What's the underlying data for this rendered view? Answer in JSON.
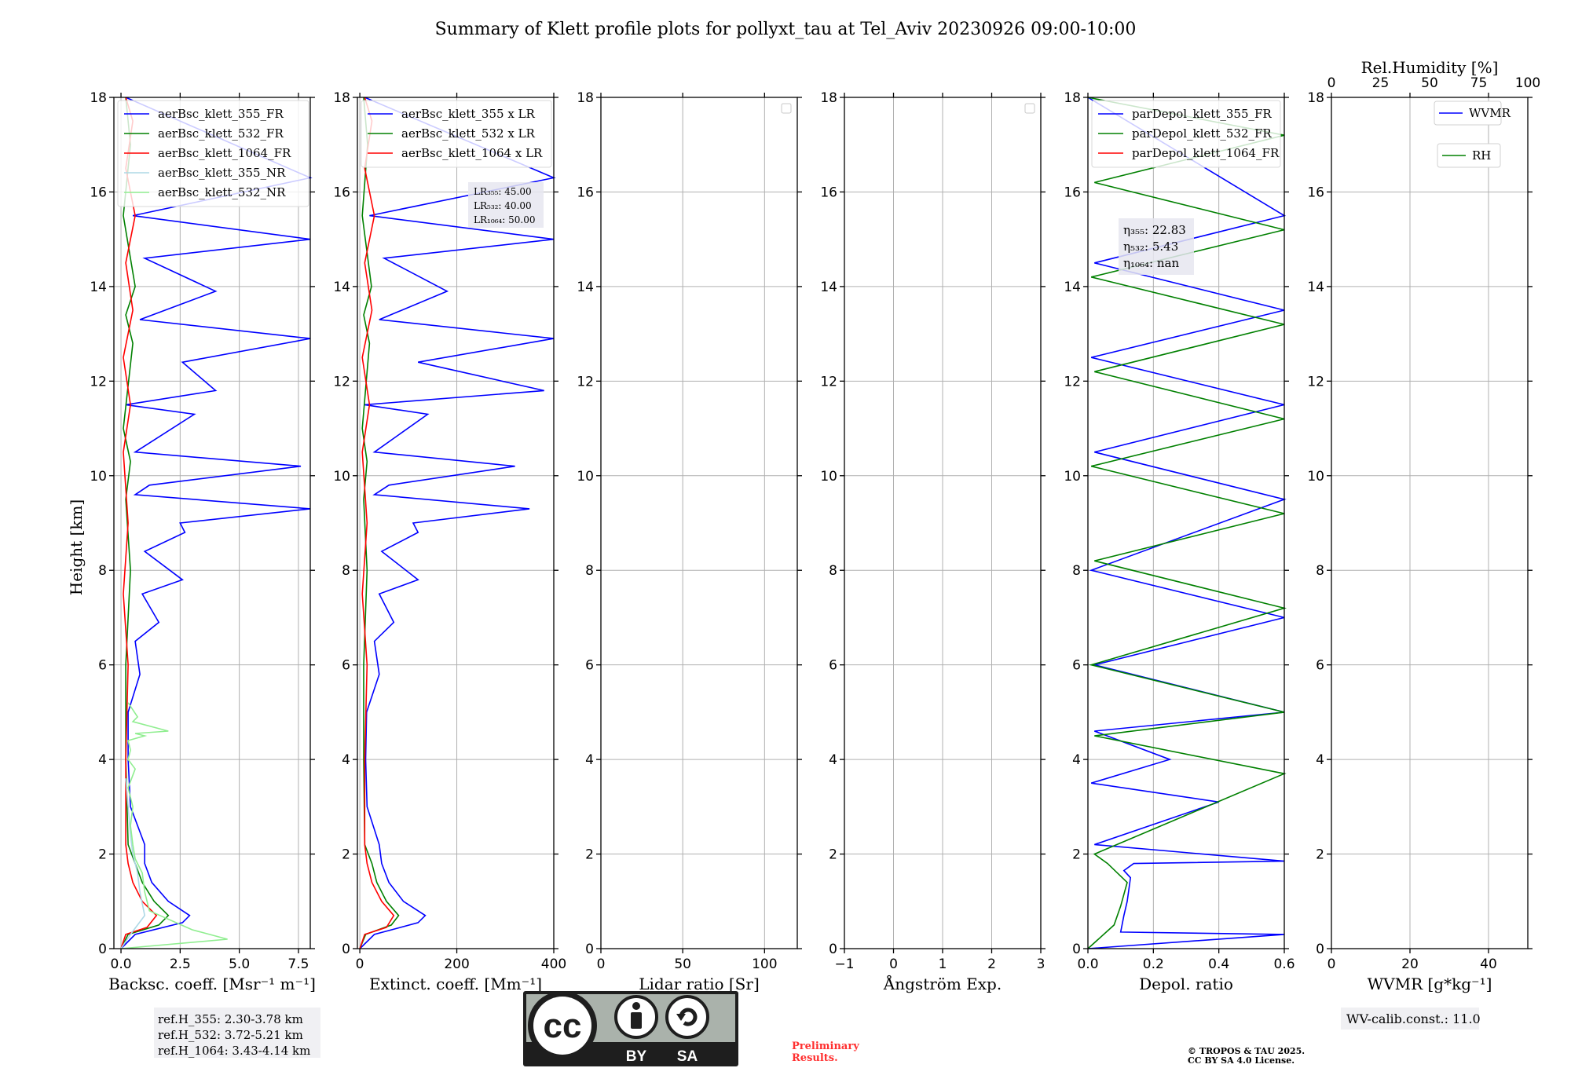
{
  "title": "Summary of Klett profile plots for pollyxt_tau at Tel_Aviv 20230926 09:00-10:00",
  "y_axis": {
    "label": "Height [km]",
    "ylim": [
      0,
      18
    ],
    "ticks": [
      0,
      2,
      4,
      6,
      8,
      10,
      12,
      14,
      16,
      18
    ]
  },
  "chart_data": [
    {
      "type": "line",
      "name": "backscatter",
      "xlabel": "Backsc. coeff. [Msr⁻¹ m⁻¹]",
      "xlim": [
        -0.3,
        8.0
      ],
      "xticks": [
        0.0,
        2.5,
        5.0,
        7.5
      ],
      "xtick_labels": [
        "0.0",
        "2.5",
        "5.0",
        "7.5"
      ],
      "legend": [
        "aerBsc_klett_355_FR",
        "aerBsc_klett_532_FR",
        "aerBsc_klett_1064_FR",
        "aerBsc_klett_355_NR",
        "aerBsc_klett_532_NR"
      ],
      "series": [
        {
          "name": "aerBsc_klett_355_FR",
          "color": "#0000ff",
          "x": [
            0.0,
            0.6,
            2.6,
            2.9,
            2.0,
            1.3,
            1.0,
            1.0,
            0.4,
            0.3,
            0.3,
            0.8,
            0.6,
            1.6,
            0.9,
            2.6,
            1.0,
            2.7,
            2.5,
            8.0,
            0.6,
            1.2,
            7.6,
            0.6,
            3.1,
            0.2,
            4.0,
            2.6,
            8.0,
            0.8,
            4.0,
            1.0,
            8.0,
            0.5,
            8.0,
            0.2
          ],
          "y": [
            0.0,
            0.3,
            0.55,
            0.7,
            1.0,
            1.4,
            1.8,
            2.2,
            3.0,
            4.0,
            5.0,
            5.8,
            6.5,
            6.9,
            7.5,
            7.8,
            8.4,
            8.8,
            9.0,
            9.3,
            9.6,
            9.8,
            10.2,
            10.5,
            11.3,
            11.5,
            11.8,
            12.4,
            12.9,
            13.3,
            13.9,
            14.6,
            15.0,
            15.5,
            16.3,
            18.0
          ]
        },
        {
          "name": "aerBsc_klett_532_FR",
          "color": "#008000",
          "x": [
            0.0,
            0.3,
            1.6,
            2.0,
            1.4,
            0.9,
            0.6,
            0.3,
            0.2,
            0.2,
            0.4,
            0.2,
            0.4,
            0.1,
            0.5,
            0.2,
            0.6,
            0.1,
            0.4,
            0.2
          ],
          "y": [
            0.0,
            0.3,
            0.5,
            0.7,
            1.0,
            1.4,
            1.8,
            2.2,
            4.0,
            6.0,
            8.0,
            9.5,
            10.3,
            11.0,
            12.8,
            13.4,
            14.0,
            15.5,
            17.0,
            18.0
          ]
        },
        {
          "name": "aerBsc_klett_1064_FR",
          "color": "#ff0000",
          "x": [
            0.0,
            0.2,
            1.1,
            1.5,
            0.9,
            0.5,
            0.3,
            0.2,
            0.2,
            0.3,
            0.1,
            0.3,
            0.1,
            0.4,
            0.1,
            0.5,
            0.2,
            0.6,
            0.2,
            0.5,
            0.2
          ],
          "y": [
            0.0,
            0.3,
            0.45,
            0.7,
            1.0,
            1.4,
            1.8,
            2.2,
            4.0,
            6.0,
            7.5,
            9.0,
            10.5,
            11.5,
            12.5,
            13.5,
            14.5,
            15.5,
            16.5,
            17.5,
            18.0
          ]
        },
        {
          "name": "aerBsc_klett_355_NR",
          "color": "#add8e6",
          "x": [
            0.0,
            0.4,
            1.0,
            0.8,
            0.7,
            0.5,
            0.4,
            0.3,
            0.2
          ],
          "y": [
            0.0,
            0.3,
            0.7,
            1.2,
            1.6,
            2.0,
            2.4,
            3.0,
            3.6
          ]
        },
        {
          "name": "aerBsc_klett_532_NR",
          "color": "#90ee90",
          "x": [
            0.0,
            4.5,
            3.0,
            1.2,
            1.0,
            0.9,
            0.6,
            0.5,
            0.4,
            0.5,
            0.3,
            0.6,
            0.3,
            0.4,
            0.3,
            1.0,
            0.6,
            2.0,
            0.5,
            0.7,
            0.3
          ],
          "y": [
            0.0,
            0.2,
            0.4,
            0.8,
            1.2,
            1.6,
            1.9,
            2.2,
            2.6,
            3.0,
            3.4,
            3.8,
            4.0,
            4.2,
            4.4,
            4.5,
            4.55,
            4.6,
            4.8,
            4.9,
            5.2
          ]
        }
      ]
    },
    {
      "type": "line",
      "name": "extinction",
      "xlabel": "Extinct. coeff. [Mm⁻¹]",
      "xlim": [
        -5,
        400
      ],
      "xticks": [
        0,
        200,
        400
      ],
      "xtick_labels": [
        "0",
        "200",
        "400"
      ],
      "legend": [
        "aerBsc_klett_355 x LR",
        "aerBsc_klett_532 x LR",
        "aerBsc_klett_1064 x LR"
      ],
      "annotation": [
        "LR₃₅₅: 45.00",
        "LR₅₃₂: 40.00",
        "LR₁₀₆₄: 50.00"
      ],
      "series": [
        {
          "name": "aerBsc_klett_355 x LR",
          "color": "#0000ff",
          "x": [
            0,
            30,
            120,
            135,
            90,
            60,
            45,
            40,
            15,
            12,
            14,
            40,
            30,
            70,
            40,
            120,
            45,
            120,
            110,
            350,
            30,
            60,
            320,
            30,
            140,
            10,
            380,
            120,
            400,
            40,
            180,
            50,
            400,
            20,
            400,
            10
          ],
          "y": [
            0.0,
            0.3,
            0.55,
            0.7,
            1.0,
            1.4,
            1.8,
            2.2,
            3.0,
            4.0,
            5.0,
            5.8,
            6.5,
            6.9,
            7.5,
            7.8,
            8.4,
            8.8,
            9.0,
            9.3,
            9.6,
            9.8,
            10.2,
            10.5,
            11.3,
            11.5,
            11.8,
            12.4,
            12.9,
            13.3,
            13.9,
            14.6,
            15.0,
            15.5,
            16.3,
            18.0
          ]
        },
        {
          "name": "aerBsc_klett_532 x LR",
          "color": "#008000",
          "x": [
            0,
            12,
            65,
            80,
            55,
            35,
            25,
            10,
            8,
            8,
            15,
            8,
            15,
            5,
            20,
            8,
            24,
            5,
            16,
            8
          ],
          "y": [
            0.0,
            0.3,
            0.5,
            0.7,
            1.0,
            1.4,
            1.8,
            2.2,
            4.0,
            6.0,
            8.0,
            9.5,
            10.3,
            11.0,
            12.8,
            13.4,
            14.0,
            15.5,
            17.0,
            18.0
          ]
        },
        {
          "name": "aerBsc_klett_1064 x LR",
          "color": "#ff0000",
          "x": [
            0,
            10,
            55,
            70,
            45,
            25,
            15,
            10,
            10,
            15,
            5,
            15,
            5,
            20,
            5,
            25,
            10,
            30,
            10,
            25,
            10
          ],
          "y": [
            0.0,
            0.3,
            0.45,
            0.7,
            1.0,
            1.4,
            1.8,
            2.2,
            4.0,
            6.0,
            7.5,
            9.0,
            10.5,
            11.5,
            12.5,
            13.5,
            14.5,
            15.5,
            16.5,
            17.5,
            18.0
          ]
        }
      ]
    },
    {
      "type": "line",
      "name": "lidar_ratio",
      "xlabel": "Lidar ratio [Sr]",
      "xlim": [
        0,
        120
      ],
      "xticks": [
        0,
        50,
        100
      ],
      "xtick_labels": [
        "0",
        "50",
        "100"
      ],
      "legend": [],
      "series": []
    },
    {
      "type": "line",
      "name": "angstrom",
      "xlabel": "Ångström Exp.",
      "xlim": [
        -1,
        3
      ],
      "xticks": [
        -1,
        0,
        1,
        2,
        3
      ],
      "xtick_labels": [
        "−1",
        "0",
        "1",
        "2",
        "3"
      ],
      "legend": [],
      "series": []
    },
    {
      "type": "line",
      "name": "depolarization",
      "xlabel": "Depol. ratio",
      "xlim": [
        0.0,
        0.6
      ],
      "xticks": [
        0.0,
        0.2,
        0.4,
        0.6
      ],
      "xtick_labels": [
        "0.0",
        "0.2",
        "0.4",
        "0.6"
      ],
      "legend": [
        "parDepol_klett_355_FR",
        "parDepol_klett_532_FR",
        "parDepol_klett_1064_FR"
      ],
      "annotation": [
        "η₃₅₅: 22.83",
        "η₅₃₂: 5.43",
        "η₁₀₆₄: nan"
      ],
      "series": [
        {
          "name": "parDepol_klett_355_FR",
          "color": "#0000ff",
          "x": [
            0.0,
            0.6,
            0.1,
            0.11,
            0.12,
            0.13,
            0.11,
            0.14,
            0.6,
            0.02,
            0.4,
            0.01,
            0.25,
            0.02,
            0.6,
            0.02,
            0.6,
            0.01,
            0.6,
            0.02,
            0.6,
            0.01,
            0.6,
            0.02,
            0.6,
            0.0
          ],
          "y": [
            0.0,
            0.3,
            0.35,
            0.7,
            1.0,
            1.5,
            1.65,
            1.8,
            1.85,
            2.2,
            3.1,
            3.5,
            4.0,
            4.6,
            5.0,
            6.0,
            7.0,
            8.0,
            9.5,
            10.5,
            11.5,
            12.5,
            13.5,
            14.5,
            15.5,
            18.0
          ]
        },
        {
          "name": "parDepol_klett_532_FR",
          "color": "#008000",
          "x": [
            0.0,
            0.08,
            0.1,
            0.12,
            0.06,
            0.02,
            0.6,
            0.02,
            0.6,
            0.01,
            0.6,
            0.02,
            0.6,
            0.01,
            0.6,
            0.02,
            0.6,
            0.01,
            0.6,
            0.02,
            0.6,
            0.0
          ],
          "y": [
            0.0,
            0.5,
            0.9,
            1.4,
            1.8,
            2.0,
            3.7,
            4.5,
            5.0,
            6.0,
            7.2,
            8.2,
            9.2,
            10.2,
            11.2,
            12.2,
            13.2,
            14.2,
            15.2,
            16.2,
            17.2,
            18.0
          ]
        },
        {
          "name": "parDepol_klett_1064_FR",
          "color": "#ff0000",
          "x": [],
          "y": []
        }
      ]
    },
    {
      "type": "line",
      "name": "wvmr",
      "xlabel": "WVMR [g*kg⁻¹]",
      "xlim": [
        0,
        50
      ],
      "xticks": [
        0,
        20,
        40
      ],
      "xtick_labels": [
        "0",
        "20",
        "40"
      ],
      "top_xlabel": "Rel.Humidity [%]",
      "top_xlim": [
        0,
        100
      ],
      "top_xticks": [
        0,
        25,
        50,
        75,
        100
      ],
      "top_xtick_labels": [
        "0",
        "25",
        "50",
        "75",
        "100"
      ],
      "legend": [
        "WVMR",
        "RH"
      ],
      "series": []
    }
  ],
  "footer": {
    "ref_heights": [
      "ref.H_355: 2.30-3.78 km",
      "ref.H_532: 3.72-5.21 km",
      "ref.H_1064: 3.43-4.14 km"
    ],
    "wv_calib": "WV-calib.const.: 11.0",
    "preliminary": [
      "Preliminary",
      "Results."
    ],
    "copyright": [
      "© TROPOS & TAU 2025.",
      "CC BY SA 4.0 License."
    ],
    "license_badge": {
      "cc": "cc",
      "by": "BY",
      "sa": "SA"
    }
  }
}
